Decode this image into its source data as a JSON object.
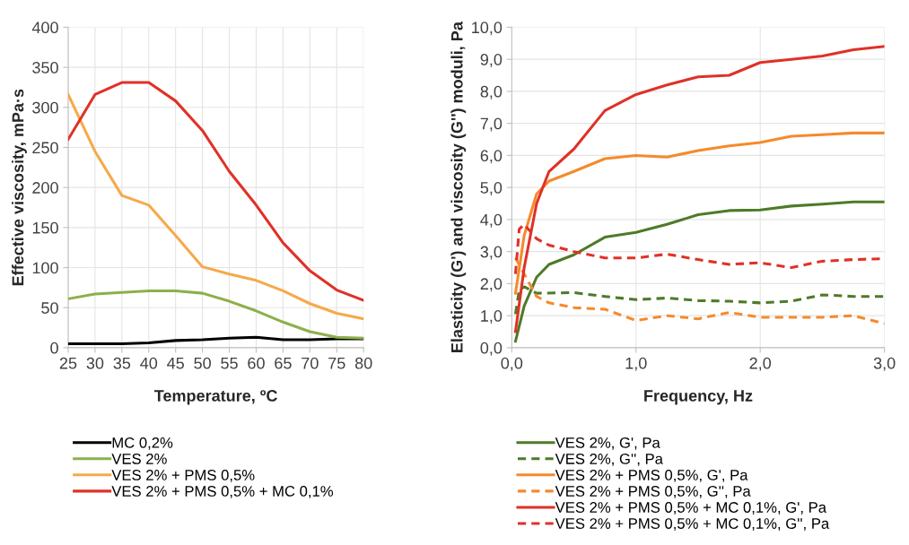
{
  "chart_data": [
    {
      "type": "line",
      "xlabel": "Temperature, ºC",
      "ylabel": "Effective viscosity, mPa·s",
      "x": [
        25,
        30,
        35,
        40,
        45,
        50,
        55,
        60,
        65,
        70,
        75,
        80
      ],
      "xlim": [
        25,
        80
      ],
      "xticks": [
        25,
        30,
        35,
        40,
        45,
        50,
        55,
        60,
        65,
        70,
        75,
        80
      ],
      "ylim": [
        0,
        400
      ],
      "yticks": [
        0,
        50,
        100,
        150,
        200,
        250,
        300,
        350,
        400
      ],
      "grid": true,
      "legend": "bottom",
      "series": [
        {
          "name": "MC 0,2%",
          "color": "#000000",
          "values": [
            5,
            5,
            5,
            6,
            9,
            10,
            12,
            13,
            10,
            10,
            11,
            11
          ]
        },
        {
          "name": "VES 2%",
          "color": "#8db04a",
          "values": [
            61,
            67,
            69,
            71,
            71,
            68,
            58,
            46,
            32,
            20,
            13,
            12
          ]
        },
        {
          "name": "VES 2% + PMS 0,5%",
          "color": "#f6a94a",
          "values": [
            316,
            245,
            190,
            178,
            140,
            101,
            92,
            84,
            71,
            55,
            43,
            36
          ]
        },
        {
          "name": "VES 2% + PMS 0,5% + MC 0,1%",
          "color": "#e03127",
          "values": [
            260,
            316,
            331,
            331,
            308,
            271,
            220,
            178,
            131,
            96,
            72,
            59
          ]
        }
      ]
    },
    {
      "type": "line",
      "xlabel": "Frequency, Hz",
      "ylabel": "Elasticity (G') and viscosity (G'') moduli, Pa",
      "xlim": [
        0,
        3
      ],
      "xticks": [
        {
          "value": 0,
          "label": "0,0"
        },
        {
          "value": 1,
          "label": "1,0"
        },
        {
          "value": 2,
          "label": "2,0"
        },
        {
          "value": 3,
          "label": "3,0"
        }
      ],
      "ylim": [
        0,
        10
      ],
      "yticks": [
        {
          "value": 0,
          "label": "0,0"
        },
        {
          "value": 1,
          "label": "1,0"
        },
        {
          "value": 2,
          "label": "2,0"
        },
        {
          "value": 3,
          "label": "3,0"
        },
        {
          "value": 4,
          "label": "4,0"
        },
        {
          "value": 5,
          "label": "5,0"
        },
        {
          "value": 6,
          "label": "6,0"
        },
        {
          "value": 7,
          "label": "7,0"
        },
        {
          "value": 8,
          "label": "8,0"
        },
        {
          "value": 9,
          "label": "9,0"
        },
        {
          "value": 10,
          "label": "10,0"
        }
      ],
      "grid": true,
      "legend": "bottom",
      "series": [
        {
          "name": "VES 2%, G', Pa",
          "color": "#4f7a28",
          "line_style": "solid",
          "x": [
            0.03,
            0.1,
            0.2,
            0.3,
            0.5,
            0.75,
            1.0,
            1.25,
            1.5,
            1.75,
            2.0,
            2.25,
            2.5,
            2.75,
            3.0
          ],
          "values": [
            0.2,
            1.3,
            2.2,
            2.6,
            2.9,
            3.45,
            3.6,
            3.85,
            4.15,
            4.28,
            4.3,
            4.42,
            4.48,
            4.55,
            4.55
          ]
        },
        {
          "name": "VES 2%, G'', Pa",
          "color": "#4f7a28",
          "line_style": "dashed",
          "x": [
            0.03,
            0.06,
            0.1,
            0.2,
            0.5,
            0.75,
            1.0,
            1.25,
            1.5,
            1.75,
            2.0,
            2.25,
            2.5,
            2.75,
            3.0
          ],
          "values": [
            1.05,
            1.8,
            1.9,
            1.7,
            1.72,
            1.6,
            1.5,
            1.55,
            1.47,
            1.45,
            1.4,
            1.45,
            1.65,
            1.6,
            1.6
          ]
        },
        {
          "name": "VES 2% + PMS 0,5%, G', Pa",
          "color": "#f58a2c",
          "line_style": "solid",
          "x": [
            0.03,
            0.1,
            0.2,
            0.3,
            0.5,
            0.75,
            1.0,
            1.25,
            1.5,
            1.75,
            2.0,
            2.25,
            2.5,
            2.75,
            3.0
          ],
          "values": [
            1.7,
            3.5,
            4.8,
            5.2,
            5.5,
            5.9,
            6.0,
            5.95,
            6.15,
            6.3,
            6.4,
            6.6,
            6.65,
            6.7,
            6.7
          ]
        },
        {
          "name": "VES 2% + PMS 0,5%, G'', Pa",
          "color": "#f58a2c",
          "line_style": "dashed",
          "x": [
            0.03,
            0.1,
            0.2,
            0.3,
            0.5,
            0.75,
            1.0,
            1.25,
            1.5,
            1.75,
            2.0,
            2.25,
            2.5,
            2.75,
            3.0
          ],
          "values": [
            2.8,
            2.3,
            1.6,
            1.4,
            1.25,
            1.2,
            0.85,
            1.0,
            0.9,
            1.1,
            0.95,
            0.95,
            0.95,
            1.0,
            0.75
          ]
        },
        {
          "name": "VES 2% + PMS 0,5% + MC 0,1%, G', Pa",
          "color": "#e03127",
          "line_style": "solid",
          "x": [
            0.03,
            0.1,
            0.2,
            0.3,
            0.5,
            0.75,
            1.0,
            1.25,
            1.5,
            1.75,
            2.0,
            2.25,
            2.5,
            2.75,
            3.0
          ],
          "values": [
            0.5,
            2.5,
            4.5,
            5.5,
            6.2,
            7.4,
            7.9,
            8.2,
            8.45,
            8.5,
            8.9,
            9.0,
            9.1,
            9.3,
            9.4
          ]
        },
        {
          "name": "VES 2% + PMS 0,5% + MC 0,1%, G'', Pa",
          "color": "#e03127",
          "line_style": "dashed",
          "x": [
            0.03,
            0.06,
            0.1,
            0.2,
            0.3,
            0.5,
            0.75,
            1.0,
            1.25,
            1.5,
            1.75,
            2.0,
            2.25,
            2.5,
            2.75,
            3.0
          ],
          "values": [
            2.3,
            3.7,
            3.85,
            3.4,
            3.2,
            3.0,
            2.8,
            2.8,
            2.92,
            2.75,
            2.6,
            2.65,
            2.5,
            2.7,
            2.75,
            2.78
          ]
        }
      ]
    }
  ]
}
